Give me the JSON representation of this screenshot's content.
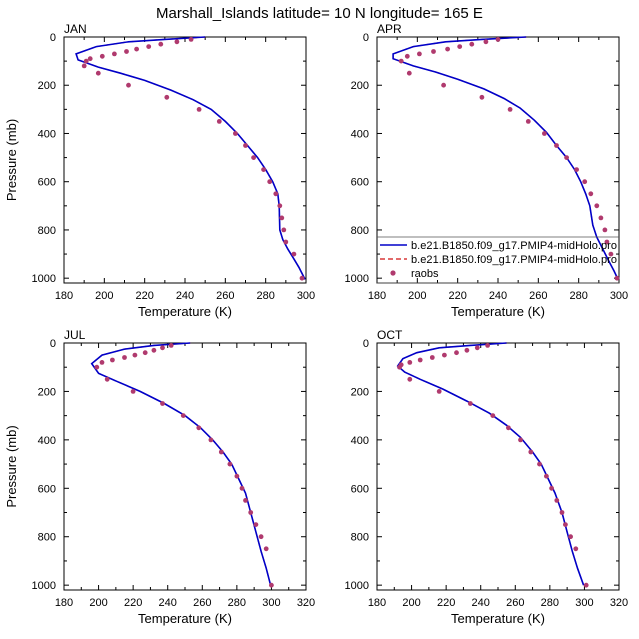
{
  "title": "Marshall_Islands  latitude= 10 N longitude= 165 E",
  "colors": {
    "model_solid": "#0000c8",
    "model_dashed": "#d01010",
    "raobs": "#b03a6e",
    "axis": "#000000"
  },
  "legend": {
    "placement": "inside APR panel, right-bottom",
    "entries": [
      {
        "label": "b.e21.B1850.f09_g17.PMIP4-midHolo.pro",
        "style": "solid-line"
      },
      {
        "label": "b.e21.B1850.f09_g17.PMIP4-midHolo.pro",
        "style": "dashed-line"
      },
      {
        "label": "raobs",
        "style": "dots"
      }
    ]
  },
  "chart_data": [
    {
      "type": "line",
      "panel": "JAN",
      "xlabel": "Temperature (K)",
      "ylabel": "Pressure (mb)",
      "xlim": [
        180,
        300
      ],
      "xticks": [
        180,
        200,
        220,
        240,
        260,
        280,
        300
      ],
      "ylim": [
        0,
        1020
      ],
      "yreversed": true,
      "yticks": [
        0,
        200,
        400,
        600,
        800,
        1000
      ],
      "model_T": [
        250.0,
        230.0,
        212.0,
        196.0,
        186.0,
        187.0,
        197.0,
        208.0,
        220.0,
        233.0,
        244.0,
        253.0,
        260.0,
        266.0,
        271.0,
        276.0,
        280.0,
        283.5,
        286.0,
        286.7,
        287.0,
        288.5,
        291.0,
        294.0,
        296.5,
        298.0,
        299.5
      ],
      "model_P": [
        0,
        10,
        20,
        40,
        70,
        95,
        125,
        150,
        180,
        220,
        260,
        300,
        350,
        400,
        450,
        500,
        550,
        600,
        650,
        700,
        800,
        840,
        880,
        920,
        955,
        980,
        1005
      ],
      "raobs_T": [
        243,
        236,
        228,
        222,
        216,
        211,
        205,
        199,
        193,
        191,
        190,
        197,
        212,
        231,
        247,
        257,
        265,
        270,
        274,
        279,
        282,
        285,
        287,
        288,
        289,
        290,
        294,
        298
      ],
      "raobs_P": [
        10,
        20,
        30,
        40,
        50,
        60,
        70,
        80,
        90,
        100,
        120,
        150,
        200,
        250,
        300,
        350,
        400,
        450,
        500,
        550,
        600,
        650,
        700,
        750,
        800,
        850,
        900,
        1000
      ]
    },
    {
      "type": "line",
      "panel": "APR",
      "xlabel": "Temperature (K)",
      "ylabel": "",
      "xlim": [
        180,
        300
      ],
      "xticks": [
        180,
        200,
        220,
        240,
        260,
        280,
        300
      ],
      "ylim": [
        0,
        1020
      ],
      "yreversed": true,
      "yticks": [
        0,
        200,
        400,
        600,
        800,
        1000
      ],
      "model_T": [
        254.0,
        232.0,
        214.0,
        198.0,
        188.0,
        188.0,
        198.0,
        209.0,
        220.0,
        233.0,
        243.0,
        251.0,
        258.0,
        264.0,
        269.0,
        274.0,
        278.0,
        281.0,
        283.5,
        285.5,
        287.0,
        289.0,
        292.0,
        295.0,
        297.5,
        299.5
      ],
      "model_P": [
        0,
        10,
        20,
        40,
        70,
        90,
        120,
        145,
        175,
        215,
        255,
        295,
        345,
        395,
        450,
        500,
        550,
        600,
        650,
        700,
        780,
        830,
        880,
        930,
        970,
        1005
      ],
      "raobs_T": [
        240,
        234,
        227,
        221,
        215,
        208,
        201,
        195,
        192,
        196,
        213,
        232,
        246,
        255,
        263,
        269,
        274,
        279,
        283,
        286,
        289,
        291,
        293,
        294,
        296,
        299
      ],
      "raobs_P": [
        10,
        20,
        30,
        40,
        50,
        60,
        70,
        80,
        100,
        150,
        200,
        250,
        300,
        350,
        400,
        450,
        500,
        550,
        600,
        650,
        700,
        750,
        800,
        850,
        900,
        1000
      ]
    },
    {
      "type": "line",
      "panel": "JUL",
      "xlabel": "Temperature (K)",
      "ylabel": "Pressure (mb)",
      "xlim": [
        180,
        320
      ],
      "xticks": [
        180,
        200,
        220,
        240,
        260,
        280,
        300,
        320
      ],
      "ylim": [
        0,
        1020
      ],
      "yreversed": true,
      "yticks": [
        0,
        200,
        400,
        600,
        800,
        1000
      ],
      "model_T": [
        253.0,
        232.0,
        215.0,
        202.0,
        196.0,
        200.0,
        211.0,
        224.0,
        238.0,
        250.0,
        259.0,
        266.0,
        272.0,
        277.0,
        281.0,
        285.0,
        288.0,
        291.0,
        294.0,
        297.0,
        299.5
      ],
      "model_P": [
        0,
        10,
        25,
        50,
        85,
        125,
        160,
        200,
        250,
        300,
        350,
        400,
        450,
        500,
        560,
        620,
        700,
        780,
        860,
        930,
        1000
      ],
      "raobs_T": [
        242,
        237,
        232,
        227,
        221,
        215,
        208,
        202,
        199,
        205,
        220,
        237,
        249,
        258,
        265,
        271,
        276,
        280,
        283,
        285,
        288,
        291,
        294,
        297,
        300
      ],
      "raobs_P": [
        10,
        20,
        30,
        40,
        50,
        60,
        70,
        80,
        100,
        150,
        200,
        250,
        300,
        350,
        400,
        450,
        500,
        550,
        600,
        650,
        700,
        750,
        800,
        850,
        1000
      ]
    },
    {
      "type": "line",
      "panel": "OCT",
      "xlabel": "Temperature (K)",
      "ylabel": "",
      "xlim": [
        180,
        320
      ],
      "xticks": [
        180,
        200,
        220,
        240,
        260,
        280,
        300,
        320
      ],
      "ylim": [
        0,
        1020
      ],
      "yreversed": true,
      "yticks": [
        0,
        200,
        400,
        600,
        800,
        1000
      ],
      "model_T": [
        255.0,
        234.0,
        216.0,
        203.0,
        195.0,
        192.0,
        196.0,
        205.0,
        218.0,
        232.0,
        245.0,
        255.0,
        263.0,
        270.0,
        275.0,
        279.0,
        283.0,
        287.0,
        290.0,
        293.0,
        296.0,
        299.5
      ],
      "model_P": [
        0,
        10,
        20,
        40,
        65,
        95,
        120,
        150,
        190,
        240,
        290,
        340,
        390,
        450,
        500,
        560,
        620,
        700,
        780,
        860,
        930,
        1000
      ],
      "raobs_T": [
        244,
        238,
        232,
        226,
        219,
        212,
        205,
        199,
        194,
        193,
        199,
        216,
        234,
        247,
        256,
        263,
        269,
        274,
        278,
        281,
        284,
        287,
        289,
        292,
        295,
        301
      ],
      "raobs_P": [
        10,
        20,
        30,
        40,
        50,
        60,
        70,
        80,
        90,
        100,
        150,
        200,
        250,
        300,
        350,
        400,
        450,
        500,
        550,
        600,
        650,
        700,
        750,
        800,
        850,
        1000
      ]
    }
  ]
}
